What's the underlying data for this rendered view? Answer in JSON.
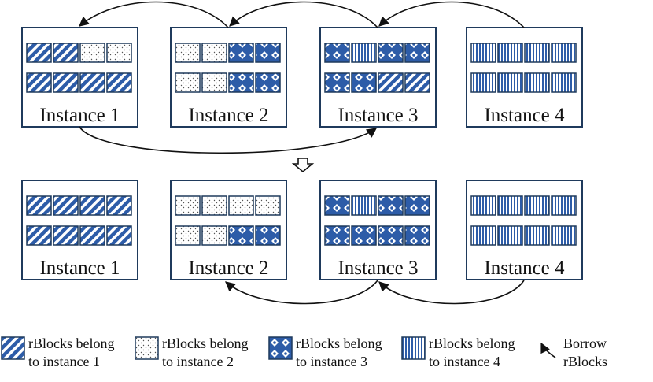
{
  "colors": {
    "border": "#1f3a5c",
    "fill_blue": "#2d5ca8",
    "stripe_bg": "#ffffff",
    "dot_color": "#555555",
    "line": "#111111"
  },
  "pattern_names": {
    "p1": "diagonal-stripe",
    "p2": "dotted",
    "p3": "diamond-checker",
    "p4": "vertical-stripe"
  },
  "top_row": [
    {
      "label": "Instance 1",
      "blocks": [
        [
          "p1",
          "p1",
          "p2",
          "p2"
        ],
        [
          "p1",
          "p1",
          "p1",
          "p1"
        ]
      ]
    },
    {
      "label": "Instance 2",
      "blocks": [
        [
          "p2",
          "p2",
          "p3",
          "p3"
        ],
        [
          "p2",
          "p2",
          "p3",
          "p3"
        ]
      ]
    },
    {
      "label": "Instance 3",
      "blocks": [
        [
          "p3",
          "p4",
          "p3",
          "p3"
        ],
        [
          "p3",
          "p3",
          "p1",
          "p1"
        ]
      ]
    },
    {
      "label": "Instance 4",
      "blocks": [
        [
          "p4",
          "p4",
          "p4",
          "p4"
        ],
        [
          "p4",
          "p4",
          "p4",
          "p4"
        ]
      ]
    }
  ],
  "bottom_row": [
    {
      "label": "Instance 1",
      "blocks": [
        [
          "p1",
          "p1",
          "p1",
          "p1"
        ],
        [
          "p1",
          "p1",
          "p1",
          "p1"
        ]
      ]
    },
    {
      "label": "Instance 2",
      "blocks": [
        [
          "p2",
          "p2",
          "p2",
          "p2"
        ],
        [
          "p2",
          "p2",
          "p3",
          "p3"
        ]
      ]
    },
    {
      "label": "Instance 3",
      "blocks": [
        [
          "p3",
          "p4",
          "p3",
          "p3"
        ],
        [
          "p3",
          "p3",
          "p3",
          "p3"
        ]
      ]
    },
    {
      "label": "Instance 4",
      "blocks": [
        [
          "p4",
          "p4",
          "p4",
          "p4"
        ],
        [
          "p4",
          "p4",
          "p4",
          "p4"
        ]
      ]
    }
  ],
  "legend": [
    {
      "pattern": "p1",
      "line1": "rBlocks belong",
      "line2": "to instance 1"
    },
    {
      "pattern": "p2",
      "line1": "rBlocks belong",
      "line2": "to instance 2"
    },
    {
      "pattern": "p3",
      "line1": "rBlocks belong",
      "line2": "to instance 3"
    },
    {
      "pattern": "p4",
      "line1": "rBlocks belong",
      "line2": "to instance 4"
    }
  ],
  "borrow_legend": {
    "line1": "Borrow",
    "line2": "rBlocks"
  }
}
